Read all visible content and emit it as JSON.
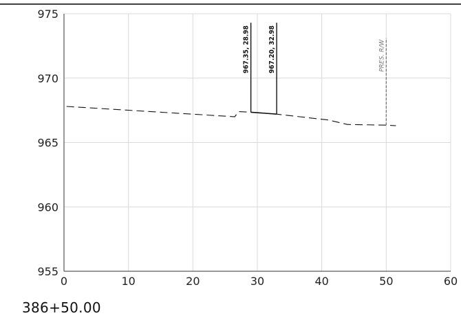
{
  "chart_data": {
    "type": "line",
    "xlim": [
      0,
      60
    ],
    "ylim": [
      955,
      975
    ],
    "x_ticks": [
      0,
      10,
      20,
      30,
      40,
      50,
      60
    ],
    "y_ticks": [
      955,
      960,
      965,
      970,
      975
    ],
    "x_tick_labels": [
      "0",
      "10",
      "20",
      "30",
      "40",
      "50",
      "60"
    ],
    "y_tick_labels": [
      "955",
      "960",
      "965",
      "970",
      "975"
    ],
    "grid": true,
    "station_label": "386+50.00",
    "series": [
      {
        "style": "dashed",
        "color": "#111111",
        "points": [
          [
            0.4,
            967.8
          ],
          [
            26.5,
            967.0
          ],
          [
            27.1,
            967.4
          ],
          [
            29.0,
            967.35
          ],
          [
            33.0,
            967.2
          ],
          [
            41.0,
            966.75
          ],
          [
            44.0,
            966.4
          ],
          [
            50.0,
            966.35
          ],
          [
            51.5,
            966.3
          ]
        ]
      },
      {
        "style": "solid",
        "color": "#111111",
        "points": [
          [
            29.0,
            967.35
          ],
          [
            33.0,
            967.2
          ]
        ]
      }
    ],
    "verticals": [
      {
        "x": 29.0,
        "y_bottom": 967.35,
        "y_top": 974.3,
        "label": "967.35, 28.98",
        "style": "solid"
      },
      {
        "x": 33.0,
        "y_bottom": 967.2,
        "y_top": 974.3,
        "label": "967.20, 32.98",
        "style": "solid"
      },
      {
        "x": 50.0,
        "y_bottom": 966.35,
        "y_top": 973.1,
        "label": "PRES. R/W",
        "style": "dashed"
      }
    ]
  }
}
